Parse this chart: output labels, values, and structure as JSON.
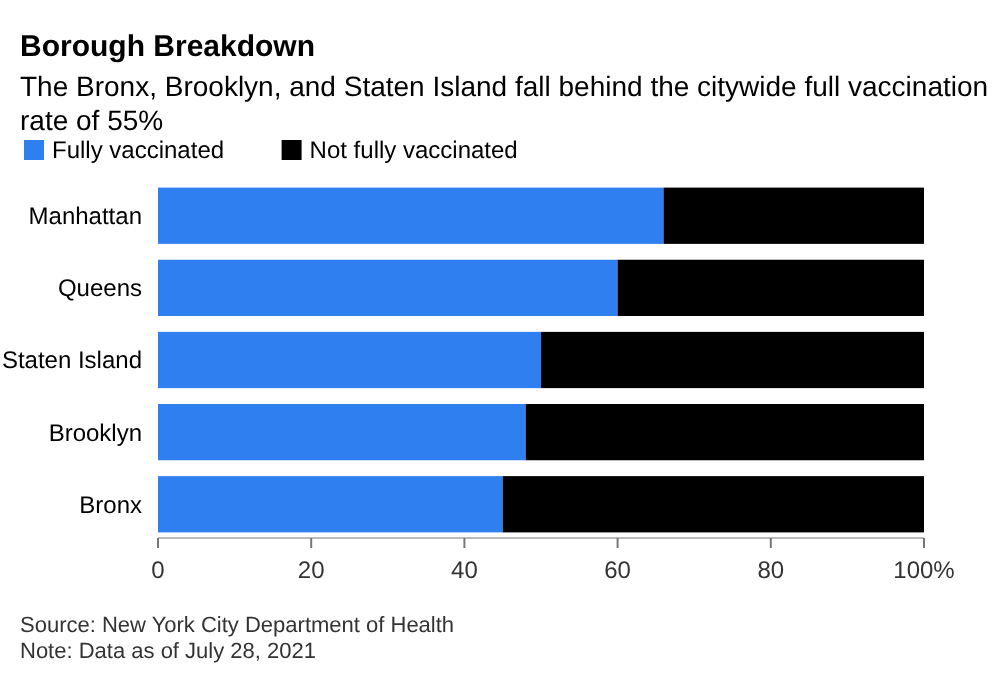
{
  "chart_data": {
    "type": "bar",
    "orientation": "horizontal",
    "stacked": true,
    "title": "Borough Breakdown",
    "subtitle": "The Bronx, Brooklyn, and Staten Island fall behind the citywide full vaccination rate of 55%",
    "categories": [
      "Manhattan",
      "Queens",
      "Staten Island",
      "Brooklyn",
      "Bronx"
    ],
    "series": [
      {
        "name": "Fully vaccinated",
        "color": "#2e7fef",
        "values": [
          66,
          60,
          50,
          48,
          45
        ]
      },
      {
        "name": "Not fully vaccinated",
        "color": "#000000",
        "values": [
          34,
          40,
          50,
          52,
          55
        ]
      }
    ],
    "xlim": [
      0,
      100
    ],
    "xticks": [
      0,
      20,
      40,
      60,
      80,
      {
        "value": 100,
        "label": "100%"
      }
    ],
    "grid": false,
    "legend": "top left",
    "annotations": [
      "Source: New York City Department of Health",
      "Note: Data as of July 28, 2021"
    ]
  }
}
